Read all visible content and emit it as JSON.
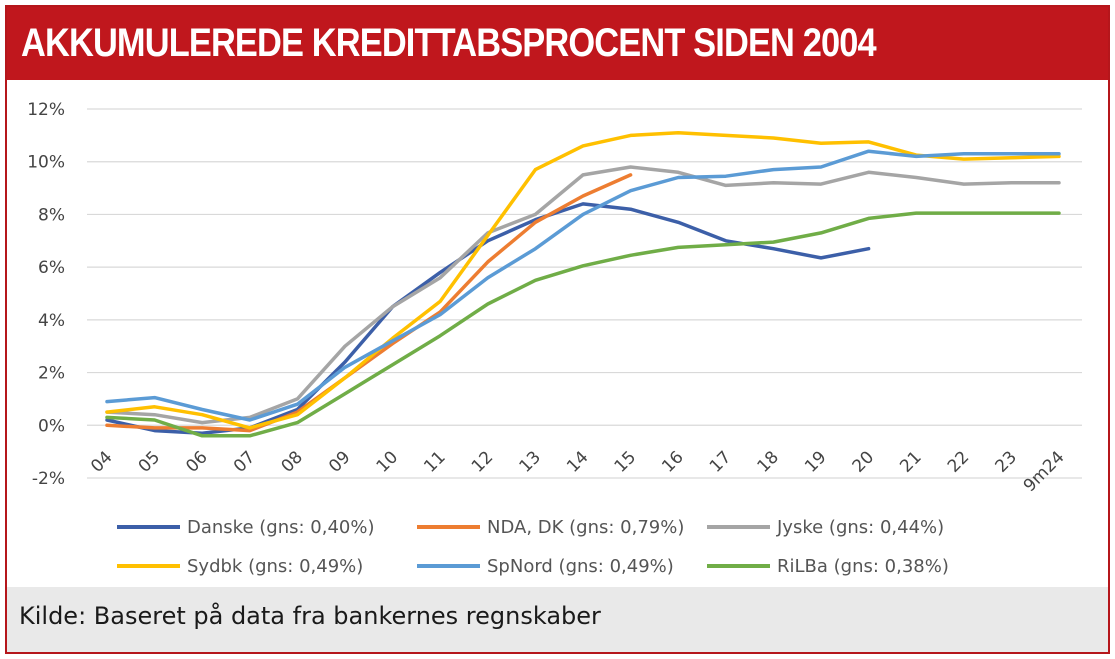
{
  "title": "AKKUMULEREDE KREDITTABSPROCENT SIDEN 2004",
  "source": "Kilde: Baseret på data fra bankernes regnskaber",
  "chart_data": {
    "type": "line",
    "title": "AKKUMULEREDE KREDITTABSPROCENT SIDEN 2004",
    "xlabel": "",
    "ylabel": "",
    "categories": [
      "04",
      "05",
      "06",
      "07",
      "08",
      "09",
      "10",
      "11",
      "12",
      "13",
      "14",
      "15",
      "16",
      "17",
      "18",
      "19",
      "20",
      "21",
      "22",
      "23",
      "9m24"
    ],
    "y_ticks": [
      "-2%",
      "0%",
      "2%",
      "4%",
      "6%",
      "8%",
      "10%",
      "12%"
    ],
    "y_tick_values": [
      -2,
      0,
      2,
      4,
      6,
      8,
      10,
      12
    ],
    "ylim": [
      -2,
      12
    ],
    "grid": true,
    "legend_position": "bottom",
    "series": [
      {
        "name": "Danske (gns: 0,40%)",
        "color": "#3c5fa8",
        "values": [
          0.2,
          -0.2,
          -0.3,
          -0.1,
          0.6,
          2.4,
          4.5,
          5.8,
          7.0,
          7.8,
          8.4,
          8.2,
          7.7,
          7.0,
          6.7,
          6.35,
          6.7,
          null,
          null,
          null,
          null
        ]
      },
      {
        "name": "NDA, DK (gns: 0,79%)",
        "color": "#ed7d31",
        "values": [
          0.0,
          -0.1,
          -0.1,
          -0.2,
          0.5,
          1.8,
          3.1,
          4.3,
          6.2,
          7.7,
          8.7,
          9.5,
          null,
          null,
          null,
          null,
          null,
          null,
          null,
          null,
          null
        ]
      },
      {
        "name": "Jyske (gns: 0,44%)",
        "color": "#a5a5a5",
        "values": [
          0.5,
          0.4,
          0.1,
          0.3,
          1.0,
          3.0,
          4.5,
          5.6,
          7.3,
          8.0,
          9.5,
          9.8,
          9.6,
          9.1,
          9.2,
          9.15,
          9.6,
          9.4,
          9.15,
          9.2,
          9.2
        ]
      },
      {
        "name": "Sydbk (gns: 0,49%)",
        "color": "#ffc000",
        "values": [
          0.5,
          0.7,
          0.4,
          -0.1,
          0.4,
          1.8,
          3.3,
          4.7,
          7.2,
          9.7,
          10.6,
          11.0,
          11.1,
          11.0,
          10.9,
          10.7,
          10.75,
          10.25,
          10.1,
          10.15,
          10.2
        ]
      },
      {
        "name": "SpNord (gns: 0,49%)",
        "color": "#5b9bd5",
        "values": [
          0.9,
          1.05,
          0.6,
          0.2,
          0.8,
          2.2,
          3.2,
          4.2,
          5.6,
          6.7,
          8.0,
          8.9,
          9.4,
          9.45,
          9.7,
          9.8,
          10.4,
          10.2,
          10.3,
          10.3,
          10.3
        ]
      },
      {
        "name": "RiLBa (gns: 0,38%)",
        "color": "#70ad47",
        "values": [
          0.3,
          0.2,
          -0.4,
          -0.4,
          0.1,
          1.2,
          2.3,
          3.4,
          4.6,
          5.5,
          6.05,
          6.45,
          6.75,
          6.85,
          6.95,
          7.3,
          7.85,
          8.05,
          8.05,
          8.05,
          8.05
        ]
      }
    ]
  }
}
